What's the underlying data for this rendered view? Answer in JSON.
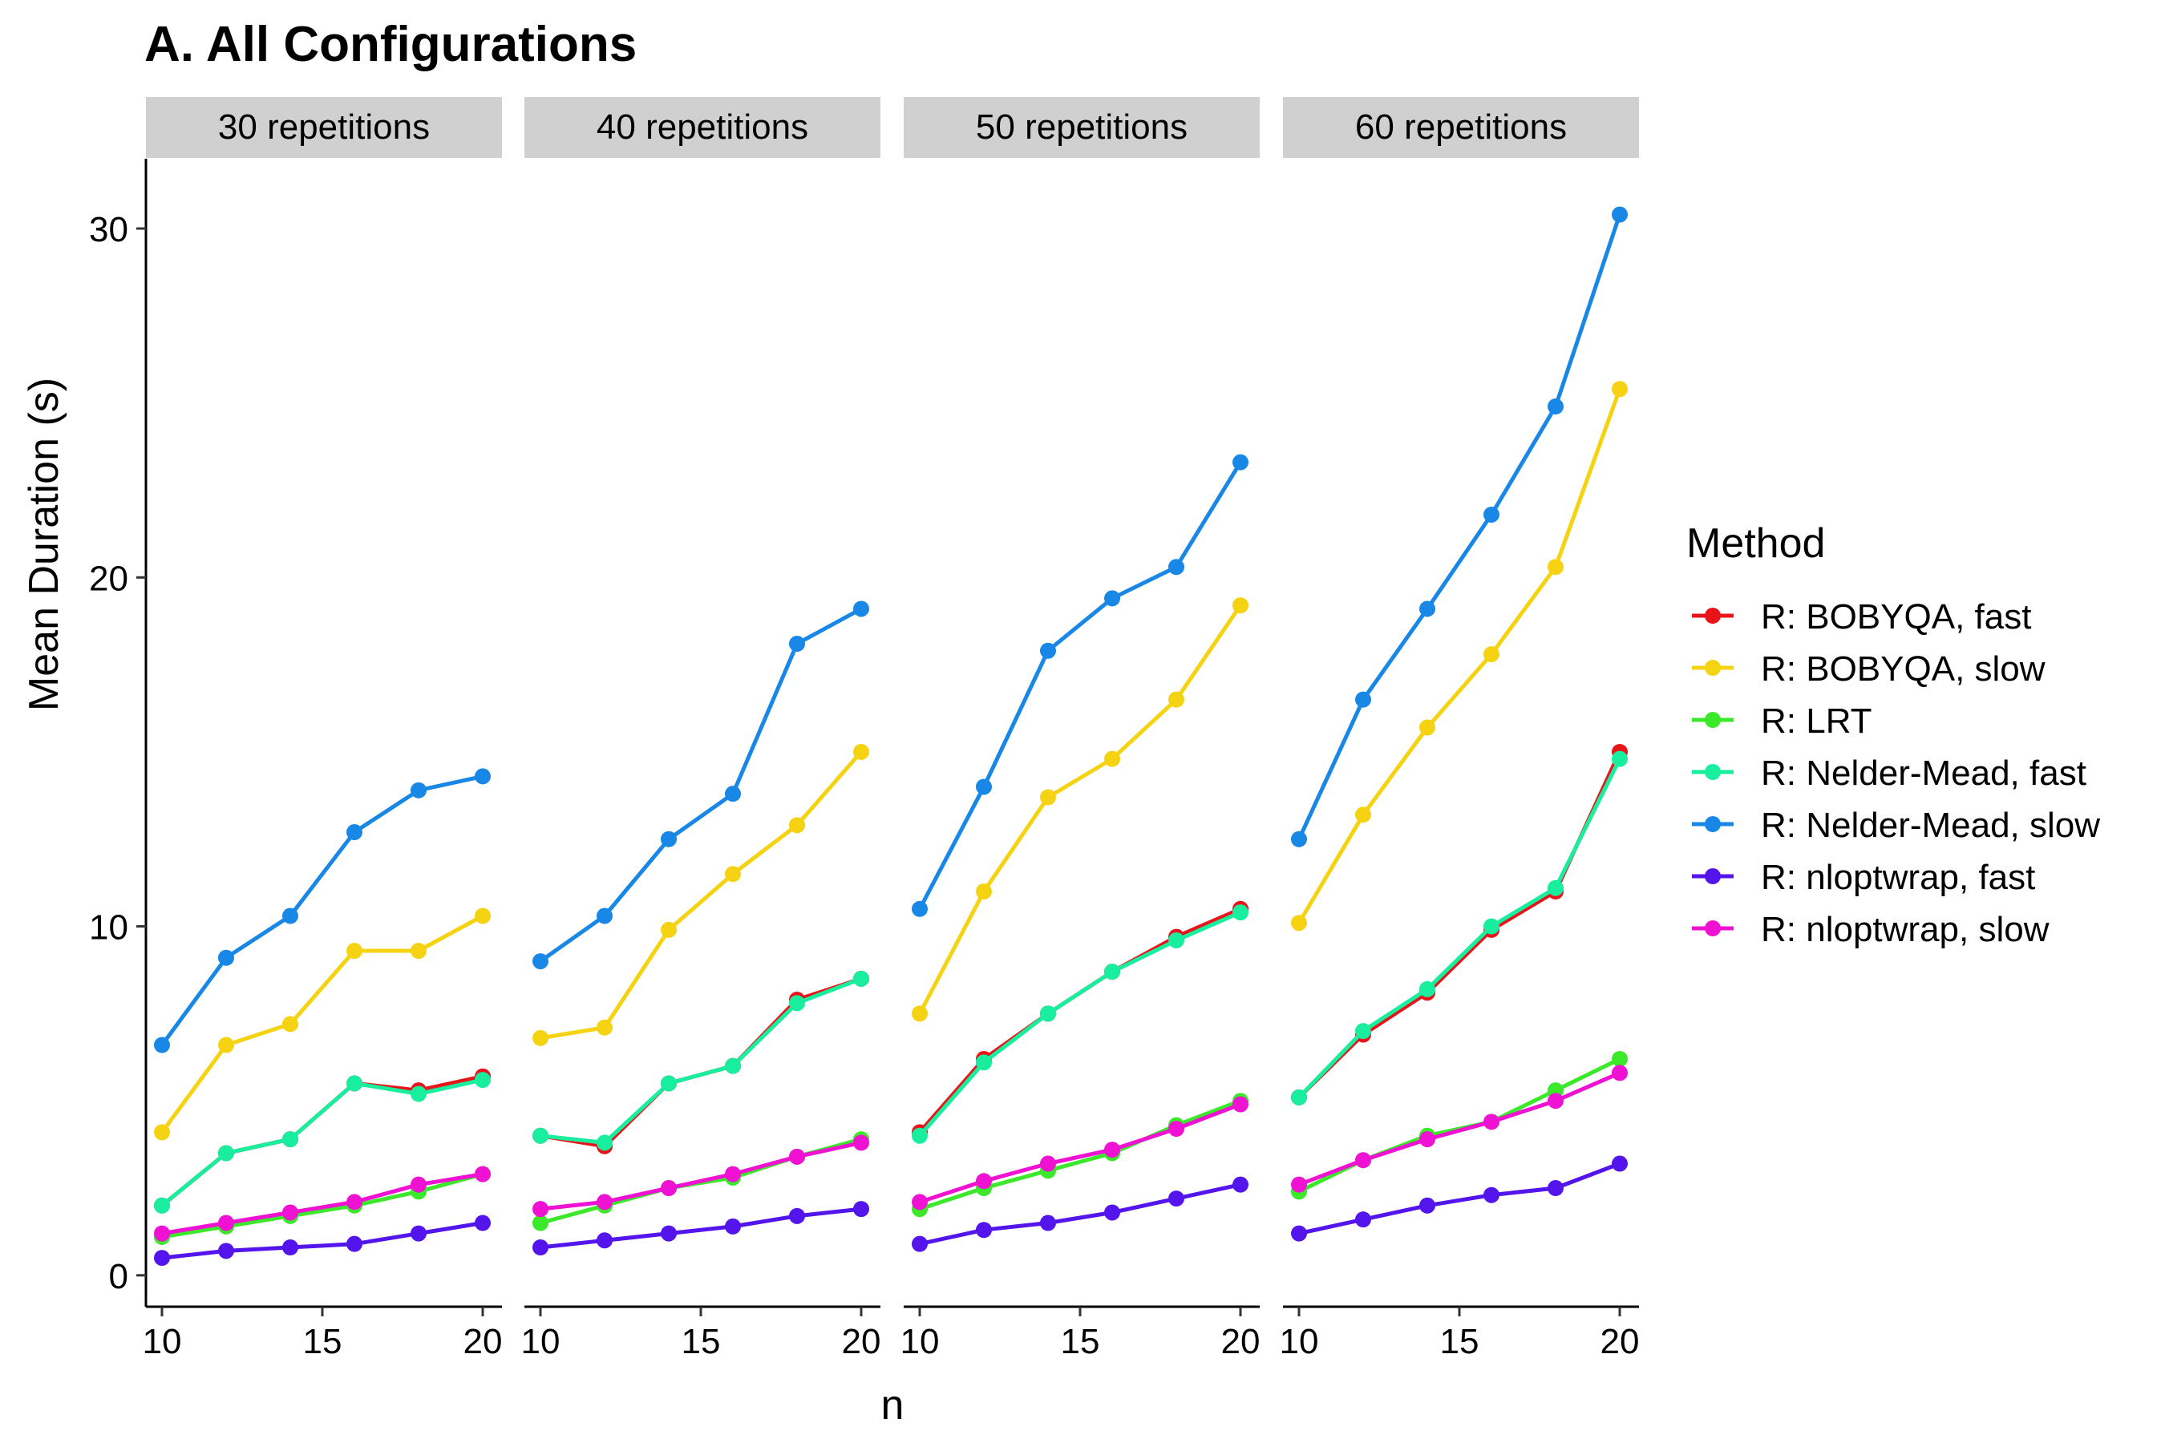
{
  "chart_data": {
    "type": "line",
    "title": "A. All Configurations",
    "xlabel": "n",
    "ylabel": "Mean Duration (s)",
    "x": [
      10,
      12,
      14,
      16,
      18,
      20
    ],
    "xlim": [
      9.5,
      20.6
    ],
    "ylim": [
      -0.9,
      32
    ],
    "x_ticks": [
      10,
      15,
      20
    ],
    "y_ticks": [
      0,
      10,
      20,
      30
    ],
    "grid": false,
    "legend": {
      "title": "Method",
      "position": "right"
    },
    "markers": true,
    "panels": [
      {
        "label": "30 repetitions",
        "series": [
          {
            "name": "R: BOBYQA, fast",
            "color": "#E8141A",
            "values": [
              2.0,
              3.5,
              3.9,
              5.5,
              5.3,
              5.7
            ]
          },
          {
            "name": "R: BOBYQA, slow",
            "color": "#F5D312",
            "values": [
              4.1,
              6.6,
              7.2,
              9.3,
              9.3,
              10.3
            ]
          },
          {
            "name": "R: LRT",
            "color": "#3CE82A",
            "values": [
              1.1,
              1.4,
              1.7,
              2.0,
              2.4,
              2.9
            ]
          },
          {
            "name": "R: Nelder-Mead, fast",
            "color": "#19EE9E",
            "values": [
              2.0,
              3.5,
              3.9,
              5.5,
              5.2,
              5.6
            ]
          },
          {
            "name": "R: Nelder-Mead, slow",
            "color": "#1887E5",
            "values": [
              6.6,
              9.1,
              10.3,
              12.7,
              13.9,
              14.3
            ]
          },
          {
            "name": "R: nloptwrap, fast",
            "color": "#5315EB",
            "values": [
              0.5,
              0.7,
              0.8,
              0.9,
              1.2,
              1.5
            ]
          },
          {
            "name": "R: nloptwrap, slow",
            "color": "#F012D2",
            "values": [
              1.2,
              1.5,
              1.8,
              2.1,
              2.6,
              2.9
            ]
          }
        ]
      },
      {
        "label": "40 repetitions",
        "series": [
          {
            "name": "R: BOBYQA, fast",
            "color": "#E8141A",
            "values": [
              4.0,
              3.7,
              5.5,
              6.0,
              7.9,
              8.5
            ]
          },
          {
            "name": "R: BOBYQA, slow",
            "color": "#F5D312",
            "values": [
              6.8,
              7.1,
              9.9,
              11.5,
              12.9,
              15.0
            ]
          },
          {
            "name": "R: LRT",
            "color": "#3CE82A",
            "values": [
              1.5,
              2.0,
              2.5,
              2.8,
              3.4,
              3.9
            ]
          },
          {
            "name": "R: Nelder-Mead, fast",
            "color": "#19EE9E",
            "values": [
              4.0,
              3.8,
              5.5,
              6.0,
              7.8,
              8.5
            ]
          },
          {
            "name": "R: Nelder-Mead, slow",
            "color": "#1887E5",
            "values": [
              9.0,
              10.3,
              12.5,
              13.8,
              18.1,
              19.1
            ]
          },
          {
            "name": "R: nloptwrap, fast",
            "color": "#5315EB",
            "values": [
              0.8,
              1.0,
              1.2,
              1.4,
              1.7,
              1.9
            ]
          },
          {
            "name": "R: nloptwrap, slow",
            "color": "#F012D2",
            "values": [
              1.9,
              2.1,
              2.5,
              2.9,
              3.4,
              3.8
            ]
          }
        ]
      },
      {
        "label": "50 repetitions",
        "series": [
          {
            "name": "R: BOBYQA, fast",
            "color": "#E8141A",
            "values": [
              4.1,
              6.2,
              7.5,
              8.7,
              9.7,
              10.5
            ]
          },
          {
            "name": "R: BOBYQA, slow",
            "color": "#F5D312",
            "values": [
              7.5,
              11.0,
              13.7,
              14.8,
              16.5,
              19.2
            ]
          },
          {
            "name": "R: LRT",
            "color": "#3CE82A",
            "values": [
              1.9,
              2.5,
              3.0,
              3.5,
              4.3,
              5.0
            ]
          },
          {
            "name": "R: Nelder-Mead, fast",
            "color": "#19EE9E",
            "values": [
              4.0,
              6.1,
              7.5,
              8.7,
              9.6,
              10.4
            ]
          },
          {
            "name": "R: Nelder-Mead, slow",
            "color": "#1887E5",
            "values": [
              10.5,
              14.0,
              17.9,
              19.4,
              20.3,
              23.3
            ]
          },
          {
            "name": "R: nloptwrap, fast",
            "color": "#5315EB",
            "values": [
              0.9,
              1.3,
              1.5,
              1.8,
              2.2,
              2.6
            ]
          },
          {
            "name": "R: nloptwrap, slow",
            "color": "#F012D2",
            "values": [
              2.1,
              2.7,
              3.2,
              3.6,
              4.2,
              4.9
            ]
          }
        ]
      },
      {
        "label": "60 repetitions",
        "series": [
          {
            "name": "R: BOBYQA, fast",
            "color": "#E8141A",
            "values": [
              5.1,
              6.9,
              8.1,
              9.9,
              11.0,
              15.0
            ]
          },
          {
            "name": "R: BOBYQA, slow",
            "color": "#F5D312",
            "values": [
              10.1,
              13.2,
              15.7,
              17.8,
              20.3,
              25.4
            ]
          },
          {
            "name": "R: LRT",
            "color": "#3CE82A",
            "values": [
              2.4,
              3.3,
              4.0,
              4.4,
              5.3,
              6.2
            ]
          },
          {
            "name": "R: Nelder-Mead, fast",
            "color": "#19EE9E",
            "values": [
              5.1,
              7.0,
              8.2,
              10.0,
              11.1,
              14.8
            ]
          },
          {
            "name": "R: Nelder-Mead, slow",
            "color": "#1887E5",
            "values": [
              12.5,
              16.5,
              19.1,
              21.8,
              24.9,
              30.4
            ]
          },
          {
            "name": "R: nloptwrap, fast",
            "color": "#5315EB",
            "values": [
              1.2,
              1.6,
              2.0,
              2.3,
              2.5,
              3.2
            ]
          },
          {
            "name": "R: nloptwrap, slow",
            "color": "#F012D2",
            "values": [
              2.6,
              3.3,
              3.9,
              4.4,
              5.0,
              5.8
            ]
          }
        ]
      }
    ]
  }
}
